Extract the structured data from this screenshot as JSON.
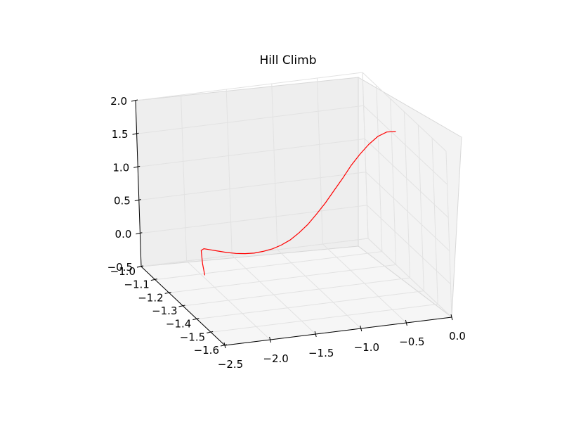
{
  "chart_data": {
    "type": "line3d",
    "title": "Hill Climb",
    "xlabel": "",
    "ylabel": "",
    "zlabel": "",
    "grid": true,
    "x_axis": {
      "ticks": [
        -2.5,
        -2.0,
        -1.5,
        -1.0,
        -0.5,
        0.0
      ],
      "tick_labels": [
        "−2.5",
        "−2.0",
        "−1.5",
        "−1.0",
        "−0.5",
        "0.0"
      ]
    },
    "y_axis": {
      "ticks": [
        -1.6,
        -1.5,
        -1.4,
        -1.3,
        -1.2,
        -1.1,
        -1.0
      ],
      "tick_labels": [
        "−1.6",
        "−1.5",
        "−1.4",
        "−1.3",
        "−1.2",
        "−1.1",
        "−1.0"
      ]
    },
    "z_axis": {
      "ticks": [
        -0.5,
        0.0,
        0.5,
        1.0,
        1.5,
        2.0
      ],
      "tick_labels": [
        "−0.5",
        "0.0",
        "0.5",
        "1.0",
        "1.5",
        "2.0"
      ]
    },
    "series": [
      {
        "color": "#ff0000",
        "x": [
          -2.25,
          -2.27,
          -2.28,
          -2.25,
          -2.2,
          -2.1,
          -2.0,
          -1.9,
          -1.8,
          -1.7,
          -1.6,
          -1.5,
          -1.4,
          -1.3,
          -1.2,
          -1.1,
          -1.0,
          -0.9,
          -0.8,
          -0.7,
          -0.6,
          -0.5,
          -0.4,
          -0.3,
          -0.2,
          -0.1
        ],
        "y": [
          -1.3,
          -1.3,
          -1.3,
          -1.3,
          -1.3,
          -1.3,
          -1.3,
          -1.3,
          -1.3,
          -1.3,
          -1.3,
          -1.3,
          -1.3,
          -1.3,
          -1.3,
          -1.3,
          -1.3,
          -1.3,
          -1.3,
          -1.3,
          -1.3,
          -1.3,
          -1.3,
          -1.3,
          -1.3,
          -1.3
        ],
        "z": [
          -0.08,
          0.1,
          0.3,
          0.32,
          0.3,
          0.26,
          0.22,
          0.19,
          0.17,
          0.16,
          0.17,
          0.19,
          0.23,
          0.29,
          0.38,
          0.49,
          0.63,
          0.78,
          0.95,
          1.12,
          1.3,
          1.45,
          1.58,
          1.68,
          1.73,
          1.72
        ]
      }
    ]
  }
}
